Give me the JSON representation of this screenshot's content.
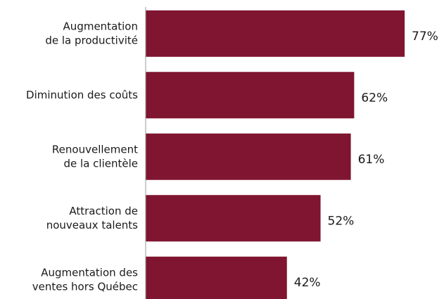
{
  "chart_data": {
    "type": "bar",
    "orientation": "horizontal",
    "categories": [
      [
        "Augmentation",
        "de la productivité"
      ],
      [
        "Diminution des coûts"
      ],
      [
        "Renouvellement",
        "de la clientèle"
      ],
      [
        "Attraction de",
        "nouveaux talents"
      ],
      [
        "Augmentation des",
        "ventes hors Québec"
      ]
    ],
    "values": [
      77,
      62,
      61,
      52,
      42
    ],
    "value_labels": [
      "77%",
      "62%",
      "61%",
      "52%",
      "42%"
    ],
    "color": "#7f1530",
    "xlim": [
      0,
      100
    ]
  }
}
